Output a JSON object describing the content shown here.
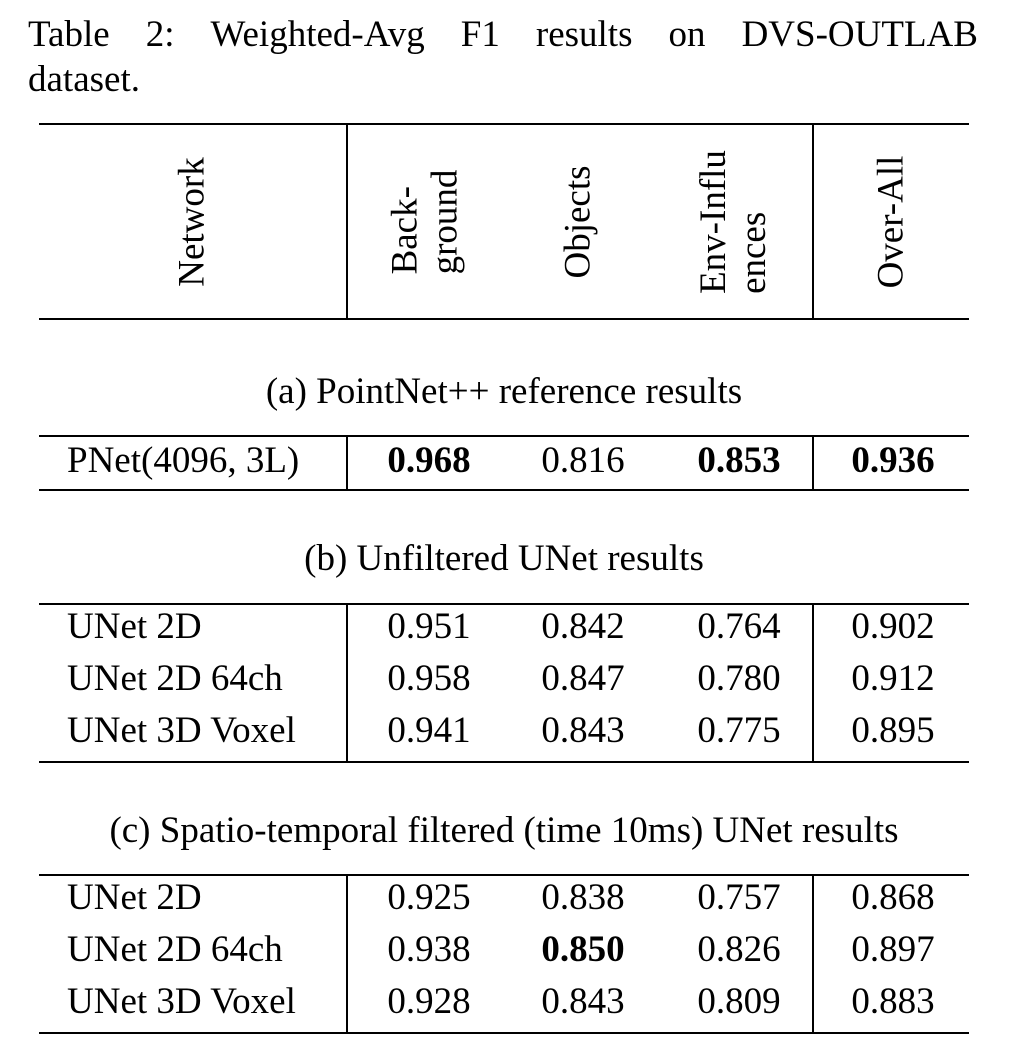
{
  "caption": {
    "line1_words": [
      "Table",
      "2:",
      "Weighted-Avg",
      "F1",
      "results",
      "on",
      "DVS-OUTLAB"
    ],
    "line2": "dataset."
  },
  "header": {
    "network": "Network",
    "background_l1": "Back-",
    "background_l2": "ground",
    "objects": "Objects",
    "env_l1": "Env-Influ",
    "env_l2": "ences",
    "overall": "Over-All"
  },
  "sections": [
    {
      "title": "(a) PointNet++ reference results",
      "rows": [
        {
          "network": "PNet(4096, 3L)",
          "background": "0.968",
          "objects": "0.816",
          "env": "0.853",
          "overall": "0.936"
        }
      ]
    },
    {
      "title": "(b) Unfiltered UNet results",
      "rows": [
        {
          "network": "UNet 2D",
          "background": "0.951",
          "objects": "0.842",
          "env": "0.764",
          "overall": "0.902"
        },
        {
          "network": "UNet 2D 64ch",
          "background": "0.958",
          "objects": "0.847",
          "env": "0.780",
          "overall": "0.912"
        },
        {
          "network": "UNet 3D Voxel",
          "background": "0.941",
          "objects": "0.843",
          "env": "0.775",
          "overall": "0.895"
        }
      ]
    },
    {
      "title": "(c) Spatio-temporal filtered (time 10ms) UNet results",
      "rows": [
        {
          "network": "UNet 2D",
          "background": "0.925",
          "objects": "0.838",
          "env": "0.757",
          "overall": "0.868"
        },
        {
          "network": "UNet 2D 64ch",
          "background": "0.938",
          "objects": "0.850",
          "env": "0.826",
          "overall": "0.897"
        },
        {
          "network": "UNet 3D Voxel",
          "background": "0.928",
          "objects": "0.843",
          "env": "0.809",
          "overall": "0.883"
        }
      ]
    }
  ]
}
